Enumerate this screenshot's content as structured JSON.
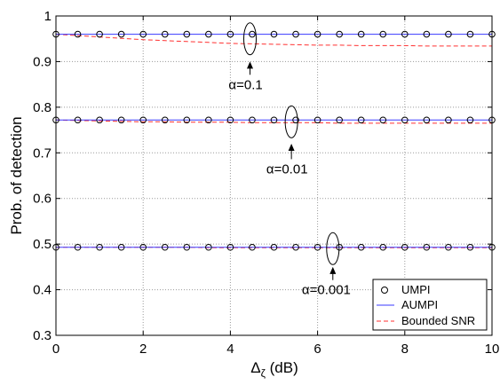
{
  "chart_data": {
    "type": "line",
    "xlabel": "Δ",
    "xlabel_sub": "ζ",
    "xlabel_unit": " (dB)",
    "ylabel": "Prob. of detection",
    "xlim": [
      0,
      10
    ],
    "ylim": [
      0.3,
      1
    ],
    "xticks": [
      0,
      2,
      4,
      6,
      8,
      10
    ],
    "xtick_labels": [
      "0",
      "2",
      "4",
      "6",
      "8",
      "10"
    ],
    "yticks": [
      0.3,
      0.4,
      0.5,
      0.6,
      0.7,
      0.8,
      0.9,
      1.0
    ],
    "ytick_labels": [
      "0.3",
      "0.4",
      "0.5",
      "0.6",
      "0.7",
      "0.8",
      "0.9",
      "1"
    ],
    "grid": true,
    "legend_position": "bottom-right",
    "x": [
      0,
      0.5,
      1,
      1.5,
      2,
      2.5,
      3,
      3.5,
      4,
      4.5,
      5,
      5.5,
      6,
      6.5,
      7,
      7.5,
      8,
      8.5,
      9,
      9.5,
      10
    ],
    "series": [
      {
        "name": "UMPI",
        "style": "marker",
        "color": "#000000",
        "groups": [
          [
            0.96,
            0.96,
            0.96,
            0.96,
            0.96,
            0.96,
            0.96,
            0.96,
            0.96,
            0.96,
            0.96,
            0.96,
            0.96,
            0.96,
            0.96,
            0.96,
            0.96,
            0.96,
            0.96,
            0.96,
            0.96
          ],
          [
            0.772,
            0.772,
            0.772,
            0.772,
            0.772,
            0.772,
            0.772,
            0.772,
            0.772,
            0.772,
            0.772,
            0.772,
            0.772,
            0.772,
            0.772,
            0.772,
            0.772,
            0.772,
            0.772,
            0.772,
            0.772
          ],
          [
            0.493,
            0.493,
            0.493,
            0.493,
            0.493,
            0.493,
            0.493,
            0.493,
            0.493,
            0.493,
            0.493,
            0.493,
            0.493,
            0.493,
            0.493,
            0.493,
            0.493,
            0.493,
            0.493,
            0.493,
            0.493
          ]
        ]
      },
      {
        "name": "AUMPI",
        "style": "solid",
        "color": "#3a3aff",
        "groups": [
          [
            0.96,
            0.96,
            0.96,
            0.96,
            0.96,
            0.96,
            0.96,
            0.96,
            0.96,
            0.96,
            0.96,
            0.96,
            0.96,
            0.96,
            0.96,
            0.96,
            0.96,
            0.96,
            0.96,
            0.96,
            0.96
          ],
          [
            0.772,
            0.772,
            0.772,
            0.772,
            0.772,
            0.772,
            0.772,
            0.772,
            0.772,
            0.772,
            0.772,
            0.772,
            0.772,
            0.772,
            0.772,
            0.772,
            0.772,
            0.772,
            0.772,
            0.772,
            0.772
          ],
          [
            0.493,
            0.493,
            0.493,
            0.493,
            0.493,
            0.493,
            0.493,
            0.493,
            0.493,
            0.493,
            0.493,
            0.493,
            0.493,
            0.493,
            0.493,
            0.493,
            0.493,
            0.493,
            0.493,
            0.493,
            0.493
          ]
        ]
      },
      {
        "name": "Bounded SNR",
        "style": "dashed",
        "color": "#ff3030",
        "groups": [
          [
            0.96,
            0.957,
            0.954,
            0.951,
            0.948,
            0.946,
            0.944,
            0.942,
            0.94,
            0.939,
            0.938,
            0.937,
            0.936,
            0.936,
            0.935,
            0.935,
            0.935,
            0.934,
            0.934,
            0.934,
            0.934
          ],
          [
            0.772,
            0.771,
            0.77,
            0.769,
            0.768,
            0.768,
            0.767,
            0.767,
            0.767,
            0.766,
            0.766,
            0.766,
            0.766,
            0.765,
            0.765,
            0.765,
            0.765,
            0.765,
            0.765,
            0.765,
            0.765
          ],
          [
            0.493,
            0.493,
            0.493,
            0.493,
            0.493,
            0.493,
            0.493,
            0.492,
            0.492,
            0.492,
            0.492,
            0.492,
            0.492,
            0.492,
            0.492,
            0.492,
            0.492,
            0.492,
            0.492,
            0.492,
            0.492
          ]
        ]
      }
    ],
    "annotations": [
      {
        "text": "α=0.1",
        "ellipse_x": 4.45,
        "ellipse_y": 0.95,
        "arrow_tip_y": 0.9,
        "label_y": 0.84,
        "label_x": 4.35
      },
      {
        "text": "α=0.01",
        "ellipse_x": 5.4,
        "ellipse_y": 0.768,
        "arrow_tip_y": 0.72,
        "label_y": 0.655,
        "label_x": 5.3
      },
      {
        "text": "α=0.001",
        "ellipse_x": 6.35,
        "ellipse_y": 0.49,
        "arrow_tip_y": 0.45,
        "label_y": 0.39,
        "label_x": 6.2
      }
    ]
  }
}
